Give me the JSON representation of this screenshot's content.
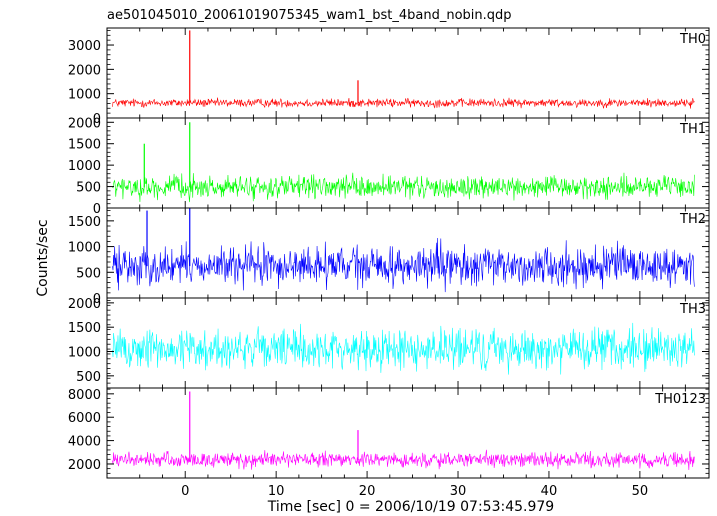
{
  "chart_data": {
    "type": "line",
    "title": "ae501045010_20061019075345_wam1_bst_4band_nobin.qdp",
    "xlabel": "Time [sec] 0 = 2006/10/19 07:53:45.979",
    "ylabel": "Counts/sec",
    "xlim": [
      -8.6,
      57.6
    ],
    "x_ticks": [
      0,
      10,
      20,
      30,
      40,
      50
    ],
    "x_tick_labels": [
      "0",
      "10",
      "20",
      "30",
      "40",
      "50"
    ],
    "data_x_range": [
      -8,
      56
    ],
    "grid": false,
    "legend": "none; each panel labeled at top-right",
    "panels": [
      {
        "name": "TH0",
        "color": "#ff0000",
        "ylim": [
          0,
          3700
        ],
        "y_ticks": [
          0,
          1000,
          2000,
          3000
        ],
        "y_tick_labels": [
          "0",
          "1000",
          "2000",
          "3000"
        ],
        "baseline": 620,
        "noise": 260,
        "spikes": [
          {
            "x": 0.5,
            "y": 3600
          },
          {
            "x": 19.0,
            "y": 1550
          }
        ]
      },
      {
        "name": "TH1",
        "color": "#00ff00",
        "ylim": [
          0,
          2100
        ],
        "y_ticks": [
          0,
          500,
          1000,
          1500,
          2000
        ],
        "y_tick_labels": [
          "0",
          "500",
          "1000",
          "1500",
          "2000"
        ],
        "baseline": 480,
        "noise": 380,
        "spikes": [
          {
            "x": 0.5,
            "y": 2000
          },
          {
            "x": -4.5,
            "y": 1500
          }
        ]
      },
      {
        "name": "TH2",
        "color": "#0000ff",
        "ylim": [
          0,
          1750
        ],
        "y_ticks": [
          0,
          500,
          1000,
          1500
        ],
        "y_tick_labels": [
          "0",
          "500",
          "1000",
          "1500"
        ],
        "baseline": 620,
        "noise": 560,
        "spikes": [
          {
            "x": 0.5,
            "y": 1750
          },
          {
            "x": -4.2,
            "y": 1700
          }
        ]
      },
      {
        "name": "TH3",
        "color": "#00ffff",
        "ylim": [
          250,
          2100
        ],
        "y_ticks": [
          500,
          1000,
          1500,
          2000
        ],
        "y_tick_labels": [
          "500",
          "1000",
          "1500",
          "2000"
        ],
        "baseline": 1050,
        "noise": 620,
        "spikes": []
      },
      {
        "name": "TH0123",
        "color": "#ff00ff",
        "ylim": [
          800,
          8500
        ],
        "y_ticks": [
          2000,
          4000,
          6000,
          8000
        ],
        "y_tick_labels": [
          "2000",
          "4000",
          "6000",
          "8000"
        ],
        "baseline": 2350,
        "noise": 950,
        "spikes": [
          {
            "x": 0.5,
            "y": 8200
          },
          {
            "x": 19.0,
            "y": 4900
          }
        ]
      }
    ]
  }
}
